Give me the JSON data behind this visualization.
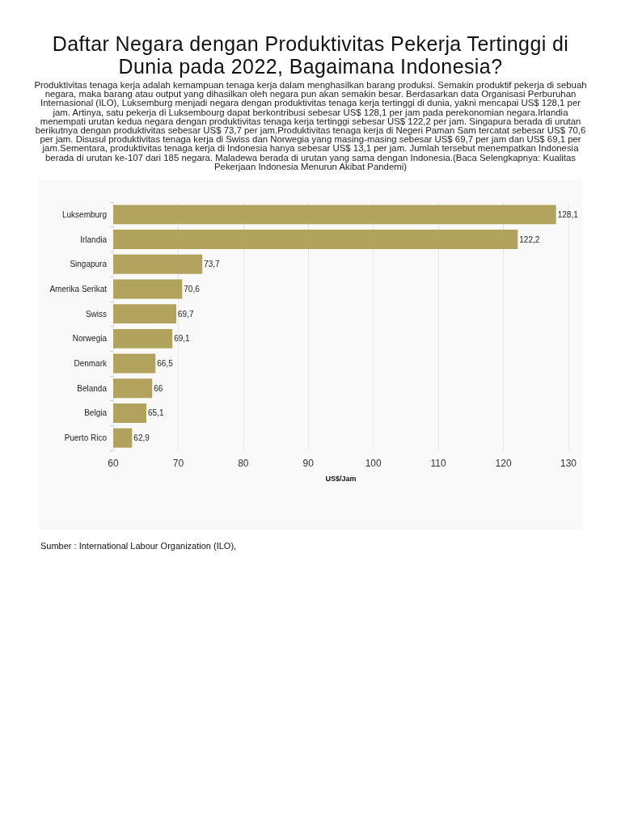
{
  "chart_data": {
    "type": "bar",
    "orientation": "horizontal",
    "title": "Daftar Negara dengan Produktivitas Pekerja Tertinggi di Dunia pada 2022, Bagaimana Indonesia?",
    "subtitle": "Produktivitas tenaga kerja adalah kemampuan tenaga kerja dalam menghasilkan barang produksi. Semakin produktif pekerja di sebuah negara, maka barang atau output yang dihasilkan oleh negara pun akan semakin besar. Berdasarkan data Organisasi Perburuhan Internasional (ILO), Luksemburg menjadi negara dengan produktivitas tenaga kerja tertinggi di dunia, yakni mencapai US$ 128,1 per jam. Artinya, satu pekerja di Luksembourg dapat berkontribusi sebesar US$ 128,1 per jam pada perekonomian negara.Irlandia menempati urutan kedua negara dengan produktivitas tenaga kerja tertinggi sebesar US$ 122,2 per jam. Singapura berada di urutan berikutnya dengan produktivitas sebesar US$ 73,7 per jam.Produktivitas tenaga kerja di Negeri Paman Sam tercatat sebesar US$ 70,6 per jam. Disusul produktivitas tenaga kerja di Swiss dan Norwegia yang masing-masing sebesar US$ 69,7 per jam dan US$ 69,1 per jam.Sementara, produktivitas tenaga kerja di Indonesia hanya sebesar US$ 13,1 per jam. Jumlah tersebut menempatkan Indonesia berada di urutan ke-107 dari 185 negara. Maladewa berada di urutan yang sama dengan Indonesia.(Baca Selengkapnya: Kualitas Pekerjaan Indonesia Menurun Akibat Pandemi)",
    "categories": [
      "Luksemburg",
      "Irlandia",
      "Singapura",
      "Amerika Serikat",
      "Swiss",
      "Norwegia",
      "Denmark",
      "Belanda",
      "Belgia",
      "Puerto Rico"
    ],
    "values": [
      128.1,
      122.2,
      73.7,
      70.6,
      69.7,
      69.1,
      66.5,
      66,
      65.1,
      62.9
    ],
    "value_labels": [
      "128,1",
      "122,2",
      "73,7",
      "70,6",
      "69,7",
      "69,1",
      "66,5",
      "66",
      "65,1",
      "62,9"
    ],
    "color": "#b1a25e",
    "xlabel": "US$/Jam",
    "xlim": [
      60,
      130
    ],
    "xticks": [
      60,
      70,
      80,
      90,
      100,
      110,
      120,
      130
    ],
    "grid": "x",
    "annotations": [
      "Sumber : International Labour Organization (ILO),"
    ]
  }
}
